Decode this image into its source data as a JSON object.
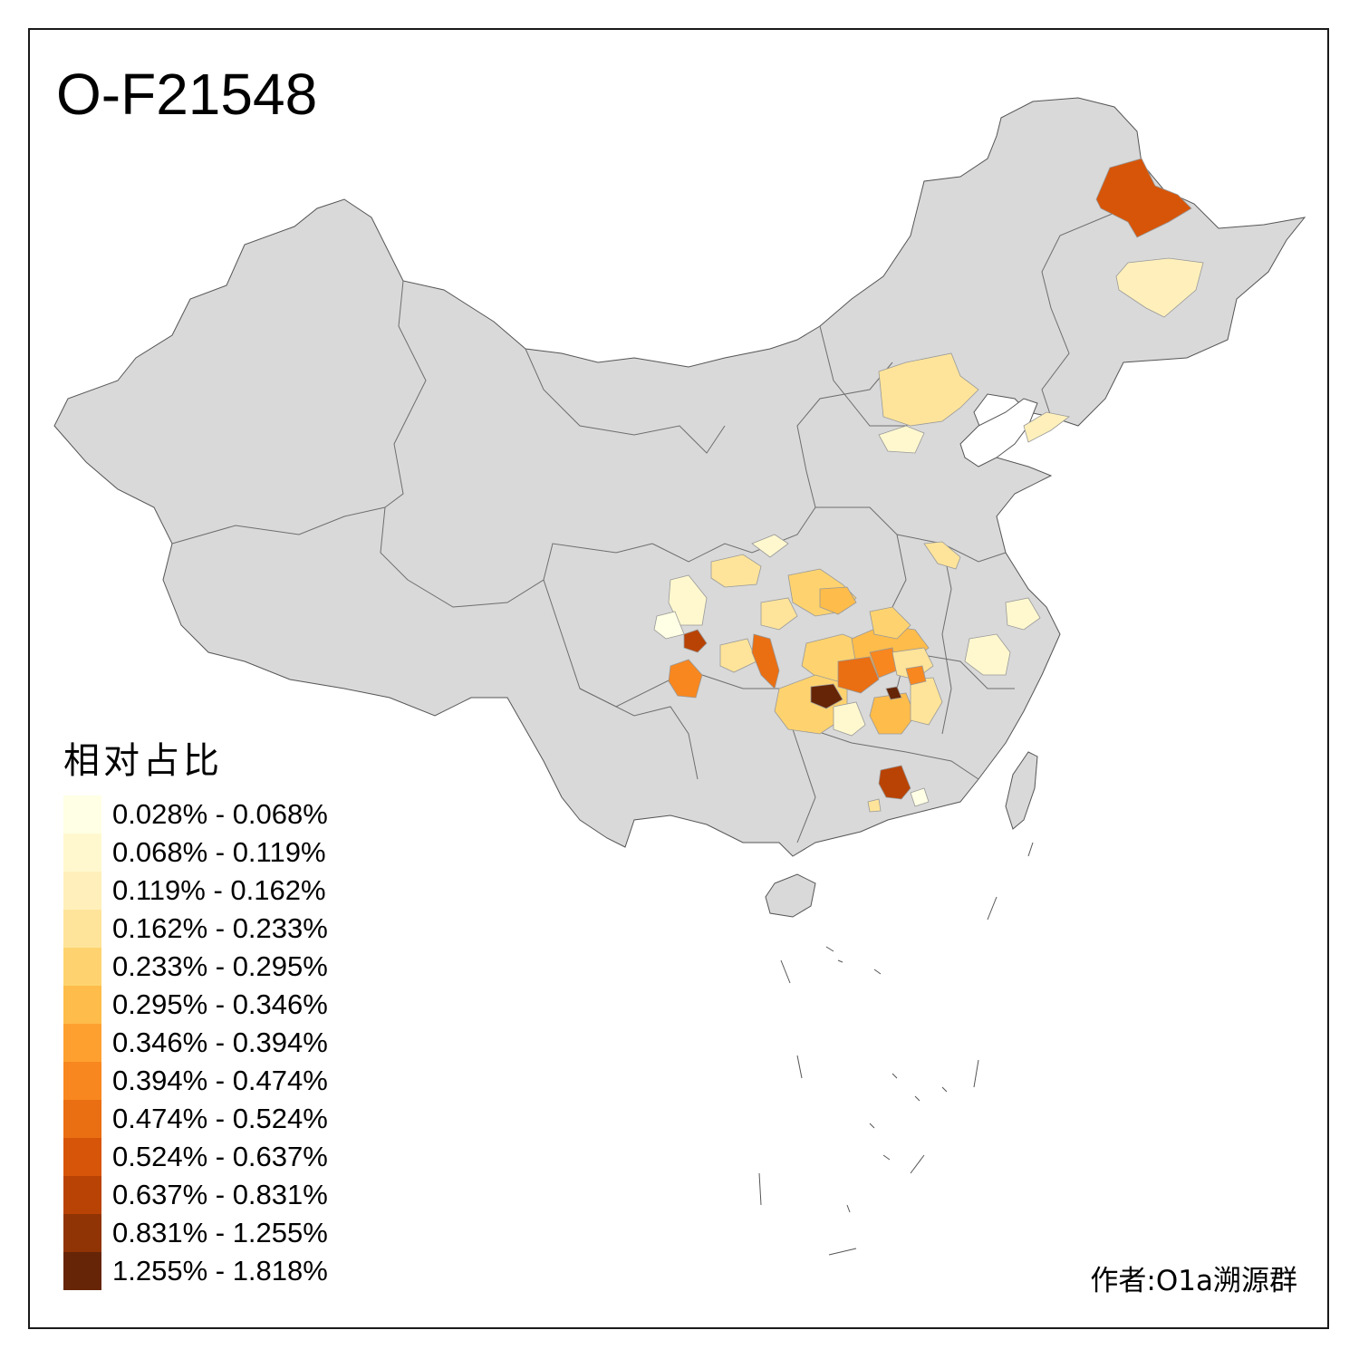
{
  "title": "O-F21548",
  "legend": {
    "title": "相对占比",
    "items": [
      {
        "label": "0.028% - 0.068%",
        "color": "#ffffe5"
      },
      {
        "label": "0.068% - 0.119%",
        "color": "#fff8cf"
      },
      {
        "label": "0.119% - 0.162%",
        "color": "#fff0bb"
      },
      {
        "label": "0.162% - 0.233%",
        "color": "#fee49a"
      },
      {
        "label": "0.233% - 0.295%",
        "color": "#fed36f"
      },
      {
        "label": "0.295% - 0.346%",
        "color": "#febc4a"
      },
      {
        "label": "0.346% - 0.394%",
        "color": "#fea030"
      },
      {
        "label": "0.394% - 0.474%",
        "color": "#f8871f"
      },
      {
        "label": "0.474% - 0.524%",
        "color": "#ea6e12"
      },
      {
        "label": "0.524% - 0.637%",
        "color": "#d75508"
      },
      {
        "label": "0.637% - 0.831%",
        "color": "#b94304"
      },
      {
        "label": "0.831% - 1.255%",
        "color": "#903405"
      },
      {
        "label": "1.255% - 1.818%",
        "color": "#662506"
      }
    ]
  },
  "author": "作者:O1a溯源群",
  "colors": {
    "land": "#d9d9d9",
    "border": "#666666",
    "no_data": "#d9d9d9"
  }
}
